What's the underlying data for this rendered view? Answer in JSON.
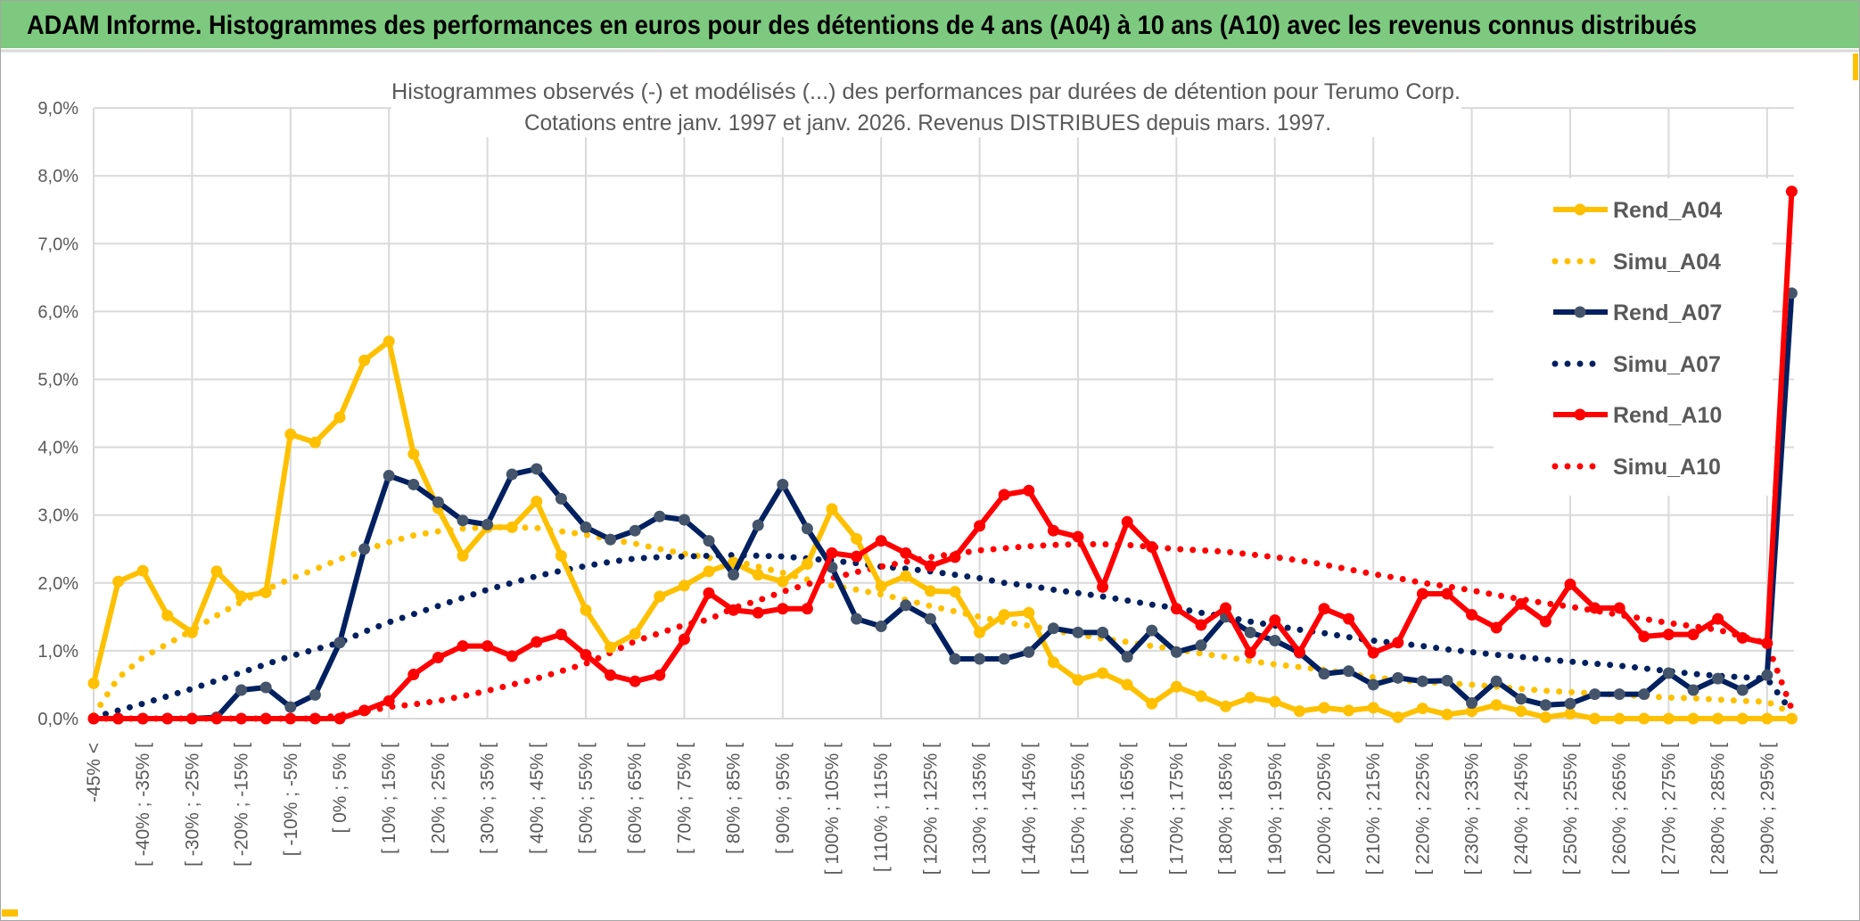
{
  "header": {
    "title": "ADAM Informe. Histogrammes des performances en euros pour des détentions de 4 ans (A04) à 10 ans (A10) avec les revenus connus distribués",
    "title_bg_color": "#7DC97F"
  },
  "chart_data": {
    "type": "line",
    "title_line1": "Histogrammes observés (-) et modélisés (...) des performances par durées de détention pour Terumo Corp.",
    "title_line2": "Cotations entre janv. 1997 et janv. 2026. Revenus DISTRIBUES depuis mars. 1997.",
    "ylim": [
      0,
      9
    ],
    "yticks": [
      "0,0%",
      "1,0%",
      "2,0%",
      "3,0%",
      "4,0%",
      "5,0%",
      "6,0%",
      "7,0%",
      "8,0%",
      "9,0%"
    ],
    "y_unit": "percent",
    "grid": true,
    "legend_position": "right",
    "categories": [
      "-45% <",
      "",
      "[ -40% ; -35% [",
      "",
      "[ -30% ; -25% [",
      "",
      "[ -20% ; -15% [",
      "",
      "[ -10% ; -5% [",
      "",
      "[ 0% ; 5% [",
      "",
      "[ 10% ; 15% [",
      "",
      "[ 20% ; 25% [",
      "",
      "[ 30% ; 35% [",
      "",
      "[ 40% ; 45% [",
      "",
      "[ 50% ; 55% [",
      "",
      "[ 60% ; 65% [",
      "",
      "[ 70% ; 75% [",
      "",
      "[ 80% ; 85% [",
      "",
      "[ 90% ; 95% [",
      "",
      "[ 100% ; 105% [",
      "",
      "[ 110% ; 115% [",
      "",
      "[ 120% ; 125% [",
      "",
      "[ 130% ; 135% [",
      "",
      "[ 140% ; 145% [",
      "",
      "[ 150% ; 155% [",
      "",
      "[ 160% ; 165% [",
      "",
      "[ 170% ; 175% [",
      "",
      "[ 180% ; 185% [",
      "",
      "[ 190% ; 195% [",
      "",
      "[ 200% ; 205% [",
      "",
      "[ 210% ; 215% [",
      "",
      "[ 220% ; 225% [",
      "",
      "[ 230% ; 235% [",
      "",
      "[ 240% ; 245% [",
      "",
      "[ 250% ; 255% [",
      "",
      "[ 260% ; 265% [",
      "",
      "[ 270% ; 275% [",
      "",
      "[ 280% ; 285% [",
      "",
      "[ 290% ; 295% [",
      ""
    ],
    "series": [
      {
        "name": "Rend_A04",
        "style": "solid",
        "color": "#FFC000",
        "marker_color": "#FFC000",
        "values": [
          0.52,
          2.02,
          2.18,
          1.52,
          1.27,
          2.17,
          1.8,
          1.86,
          4.19,
          4.07,
          4.44,
          5.28,
          5.56,
          3.9,
          3.1,
          2.4,
          2.82,
          2.82,
          3.2,
          2.4,
          1.6,
          1.05,
          1.25,
          1.8,
          1.96,
          2.17,
          2.3,
          2.12,
          2.02,
          2.28,
          3.09,
          2.65,
          1.95,
          2.1,
          1.88,
          1.87,
          1.27,
          1.53,
          1.56,
          0.83,
          0.57,
          0.67,
          0.5,
          0.22,
          0.47,
          0.33,
          0.18,
          0.31,
          0.25,
          0.11,
          0.16,
          0.12,
          0.16,
          0.02,
          0.15,
          0.06,
          0.11,
          0.2,
          0.11,
          0.02,
          0.07,
          0,
          0,
          0,
          0,
          0,
          0,
          0,
          0,
          0
        ]
      },
      {
        "name": "Simu_A04",
        "style": "dotted",
        "color": "#FFC000",
        "values": [
          0.05,
          0.6,
          0.9,
          1.1,
          1.3,
          1.52,
          1.72,
          1.9,
          2.06,
          2.2,
          2.35,
          2.48,
          2.6,
          2.7,
          2.76,
          2.8,
          2.82,
          2.82,
          2.81,
          2.76,
          2.71,
          2.64,
          2.58,
          2.5,
          2.43,
          2.37,
          2.33,
          2.24,
          2.15,
          2.05,
          1.96,
          1.9,
          1.83,
          1.75,
          1.66,
          1.58,
          1.5,
          1.42,
          1.37,
          1.3,
          1.24,
          1.18,
          1.13,
          1.07,
          1.02,
          0.96,
          0.91,
          0.85,
          0.8,
          0.76,
          0.72,
          0.66,
          0.61,
          0.57,
          0.54,
          0.52,
          0.5,
          0.47,
          0.44,
          0.41,
          0.39,
          0.37,
          0.35,
          0.33,
          0.31,
          0.3,
          0.28,
          0.26,
          0.25,
          0.08
        ]
      },
      {
        "name": "Rend_A07",
        "style": "solid",
        "color": "#002060",
        "marker_color": "#44546A",
        "values": [
          0,
          0,
          0,
          0,
          0,
          0.02,
          0.42,
          0.46,
          0.17,
          0.35,
          1.12,
          2.5,
          3.58,
          3.45,
          3.19,
          2.92,
          2.86,
          3.6,
          3.68,
          3.24,
          2.82,
          2.64,
          2.77,
          2.98,
          2.93,
          2.62,
          2.12,
          2.85,
          3.45,
          2.8,
          2.23,
          1.47,
          1.36,
          1.67,
          1.47,
          0.88,
          0.88,
          0.88,
          0.98,
          1.33,
          1.27,
          1.27,
          0.91,
          1.3,
          0.98,
          1.08,
          1.5,
          1.27,
          1.15,
          0.97,
          0.66,
          0.7,
          0.5,
          0.6,
          0.55,
          0.56,
          0.23,
          0.55,
          0.29,
          0.2,
          0.22,
          0.36,
          0.36,
          0.36,
          0.67,
          0.42,
          0.59,
          0.42,
          0.64,
          6.27
        ]
      },
      {
        "name": "Simu_A07",
        "style": "dotted",
        "color": "#002060",
        "values": [
          0.02,
          0.12,
          0.22,
          0.33,
          0.44,
          0.56,
          0.68,
          0.8,
          0.92,
          1.02,
          1.12,
          1.28,
          1.42,
          1.54,
          1.66,
          1.78,
          1.9,
          2.0,
          2.1,
          2.18,
          2.25,
          2.31,
          2.36,
          2.38,
          2.39,
          2.4,
          2.41,
          2.4,
          2.39,
          2.36,
          2.33,
          2.29,
          2.24,
          2.21,
          2.17,
          2.12,
          2.07,
          2.0,
          1.96,
          1.9,
          1.85,
          1.8,
          1.74,
          1.68,
          1.63,
          1.56,
          1.5,
          1.43,
          1.37,
          1.31,
          1.26,
          1.2,
          1.15,
          1.11,
          1.07,
          1.02,
          0.98,
          0.94,
          0.91,
          0.87,
          0.84,
          0.81,
          0.78,
          0.74,
          0.7,
          0.66,
          0.63,
          0.61,
          0.59,
          0.1
        ]
      },
      {
        "name": "Rend_A10",
        "style": "solid",
        "color": "#FF0000",
        "marker_color": "#FF0000",
        "values": [
          0,
          0,
          0,
          0,
          0,
          0,
          0,
          0,
          0,
          0,
          0,
          0.12,
          0.26,
          0.65,
          0.9,
          1.07,
          1.07,
          0.92,
          1.13,
          1.24,
          0.94,
          0.64,
          0.55,
          0.64,
          1.17,
          1.85,
          1.6,
          1.56,
          1.62,
          1.62,
          2.44,
          2.39,
          2.62,
          2.44,
          2.25,
          2.38,
          2.84,
          3.3,
          3.36,
          2.77,
          2.68,
          1.94,
          2.9,
          2.53,
          1.62,
          1.38,
          1.63,
          0.97,
          1.45,
          0.98,
          1.62,
          1.47,
          0.97,
          1.12,
          1.84,
          1.84,
          1.53,
          1.34,
          1.69,
          1.43,
          1.98,
          1.63,
          1.63,
          1.21,
          1.24,
          1.24,
          1.47,
          1.19,
          1.11,
          7.77
        ]
      },
      {
        "name": "Simu_A10",
        "style": "dotted",
        "color": "#FF0000",
        "values": [
          0,
          0,
          0,
          0,
          0,
          0,
          0,
          0,
          0,
          0,
          0.05,
          0.1,
          0.17,
          0.21,
          0.26,
          0.33,
          0.41,
          0.5,
          0.59,
          0.7,
          0.81,
          0.97,
          1.14,
          1.26,
          1.38,
          1.46,
          1.63,
          1.74,
          1.87,
          1.98,
          2.07,
          2.16,
          2.24,
          2.31,
          2.38,
          2.43,
          2.48,
          2.51,
          2.54,
          2.56,
          2.57,
          2.57,
          2.56,
          2.53,
          2.5,
          2.48,
          2.46,
          2.42,
          2.38,
          2.33,
          2.27,
          2.2,
          2.13,
          2.07,
          2.0,
          1.95,
          1.89,
          1.82,
          1.76,
          1.7,
          1.65,
          1.59,
          1.53,
          1.47,
          1.41,
          1.36,
          1.31,
          1.21,
          1.11,
          0.14
        ]
      }
    ]
  }
}
